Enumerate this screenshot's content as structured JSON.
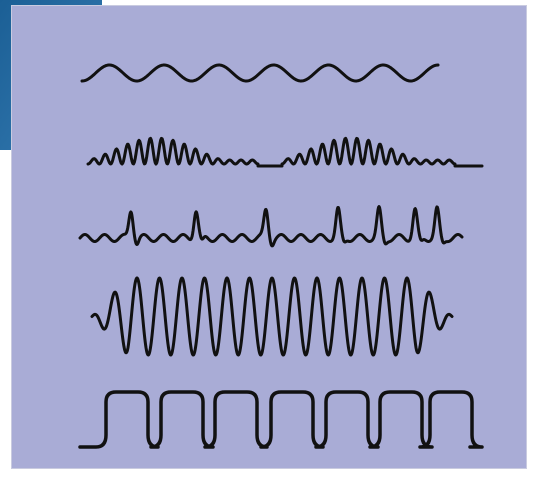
{
  "colors": {
    "panel_background": "#a9acd6",
    "corner_accent": "#1b5f95",
    "corner_accent_light": "#6d9cc4",
    "trace_color": "#111111"
  },
  "traces": [
    {
      "name": "sine-wave",
      "kind": "sine",
      "cycles": 6.5
    },
    {
      "name": "modulated-spindle-burst-wave",
      "kind": "modulated-bursts",
      "bursts": 2
    },
    {
      "name": "sharp-spike-wave",
      "kind": "spikes",
      "spikes": 7
    },
    {
      "name": "high-amplitude-oscillation",
      "kind": "oscillation",
      "cycles": 16
    },
    {
      "name": "rounded-square-wave",
      "kind": "square",
      "cycles": 7
    }
  ]
}
